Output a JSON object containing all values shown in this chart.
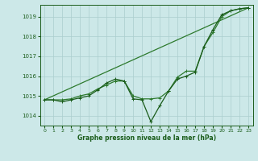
{
  "title": "Graphe pression niveau de la mer (hPa)",
  "background_color": "#cce8e8",
  "grid_color": "#aacece",
  "line_color_dark": "#1a5c1a",
  "line_color_medium": "#2d7a2d",
  "xlim": [
    -0.5,
    23.5
  ],
  "ylim": [
    1013.5,
    1019.6
  ],
  "yticks": [
    1014,
    1015,
    1016,
    1017,
    1018,
    1019
  ],
  "xticks": [
    0,
    1,
    2,
    3,
    4,
    5,
    6,
    7,
    8,
    9,
    10,
    11,
    12,
    13,
    14,
    15,
    16,
    17,
    18,
    19,
    20,
    21,
    22,
    23
  ],
  "series1_x": [
    0,
    1,
    2,
    3,
    4,
    5,
    6,
    7,
    8,
    9,
    10,
    11,
    12,
    13,
    14,
    15,
    16,
    17,
    18,
    19,
    20,
    21,
    22,
    23
  ],
  "series1_y": [
    1014.8,
    1014.8,
    1014.7,
    1014.8,
    1014.9,
    1015.0,
    1015.3,
    1015.65,
    1015.85,
    1015.75,
    1014.85,
    1014.8,
    1013.7,
    1014.5,
    1015.25,
    1015.85,
    1016.0,
    1016.2,
    1017.5,
    1018.35,
    1019.1,
    1019.3,
    1019.4,
    1019.45
  ],
  "series2_x": [
    0,
    1,
    2,
    3,
    4,
    5,
    6,
    7,
    8,
    9,
    10,
    11,
    12,
    13,
    14,
    15,
    16,
    17,
    18,
    19,
    20,
    21,
    22,
    23
  ],
  "series2_y": [
    1014.8,
    1014.8,
    1014.8,
    1014.85,
    1015.0,
    1015.1,
    1015.35,
    1015.55,
    1015.75,
    1015.75,
    1015.0,
    1014.85,
    1014.85,
    1014.9,
    1015.25,
    1015.95,
    1016.25,
    1016.25,
    1017.5,
    1018.2,
    1019.0,
    1019.3,
    1019.4,
    1019.45
  ],
  "series3_x": [
    0,
    23
  ],
  "series3_y": [
    1014.8,
    1019.45
  ]
}
